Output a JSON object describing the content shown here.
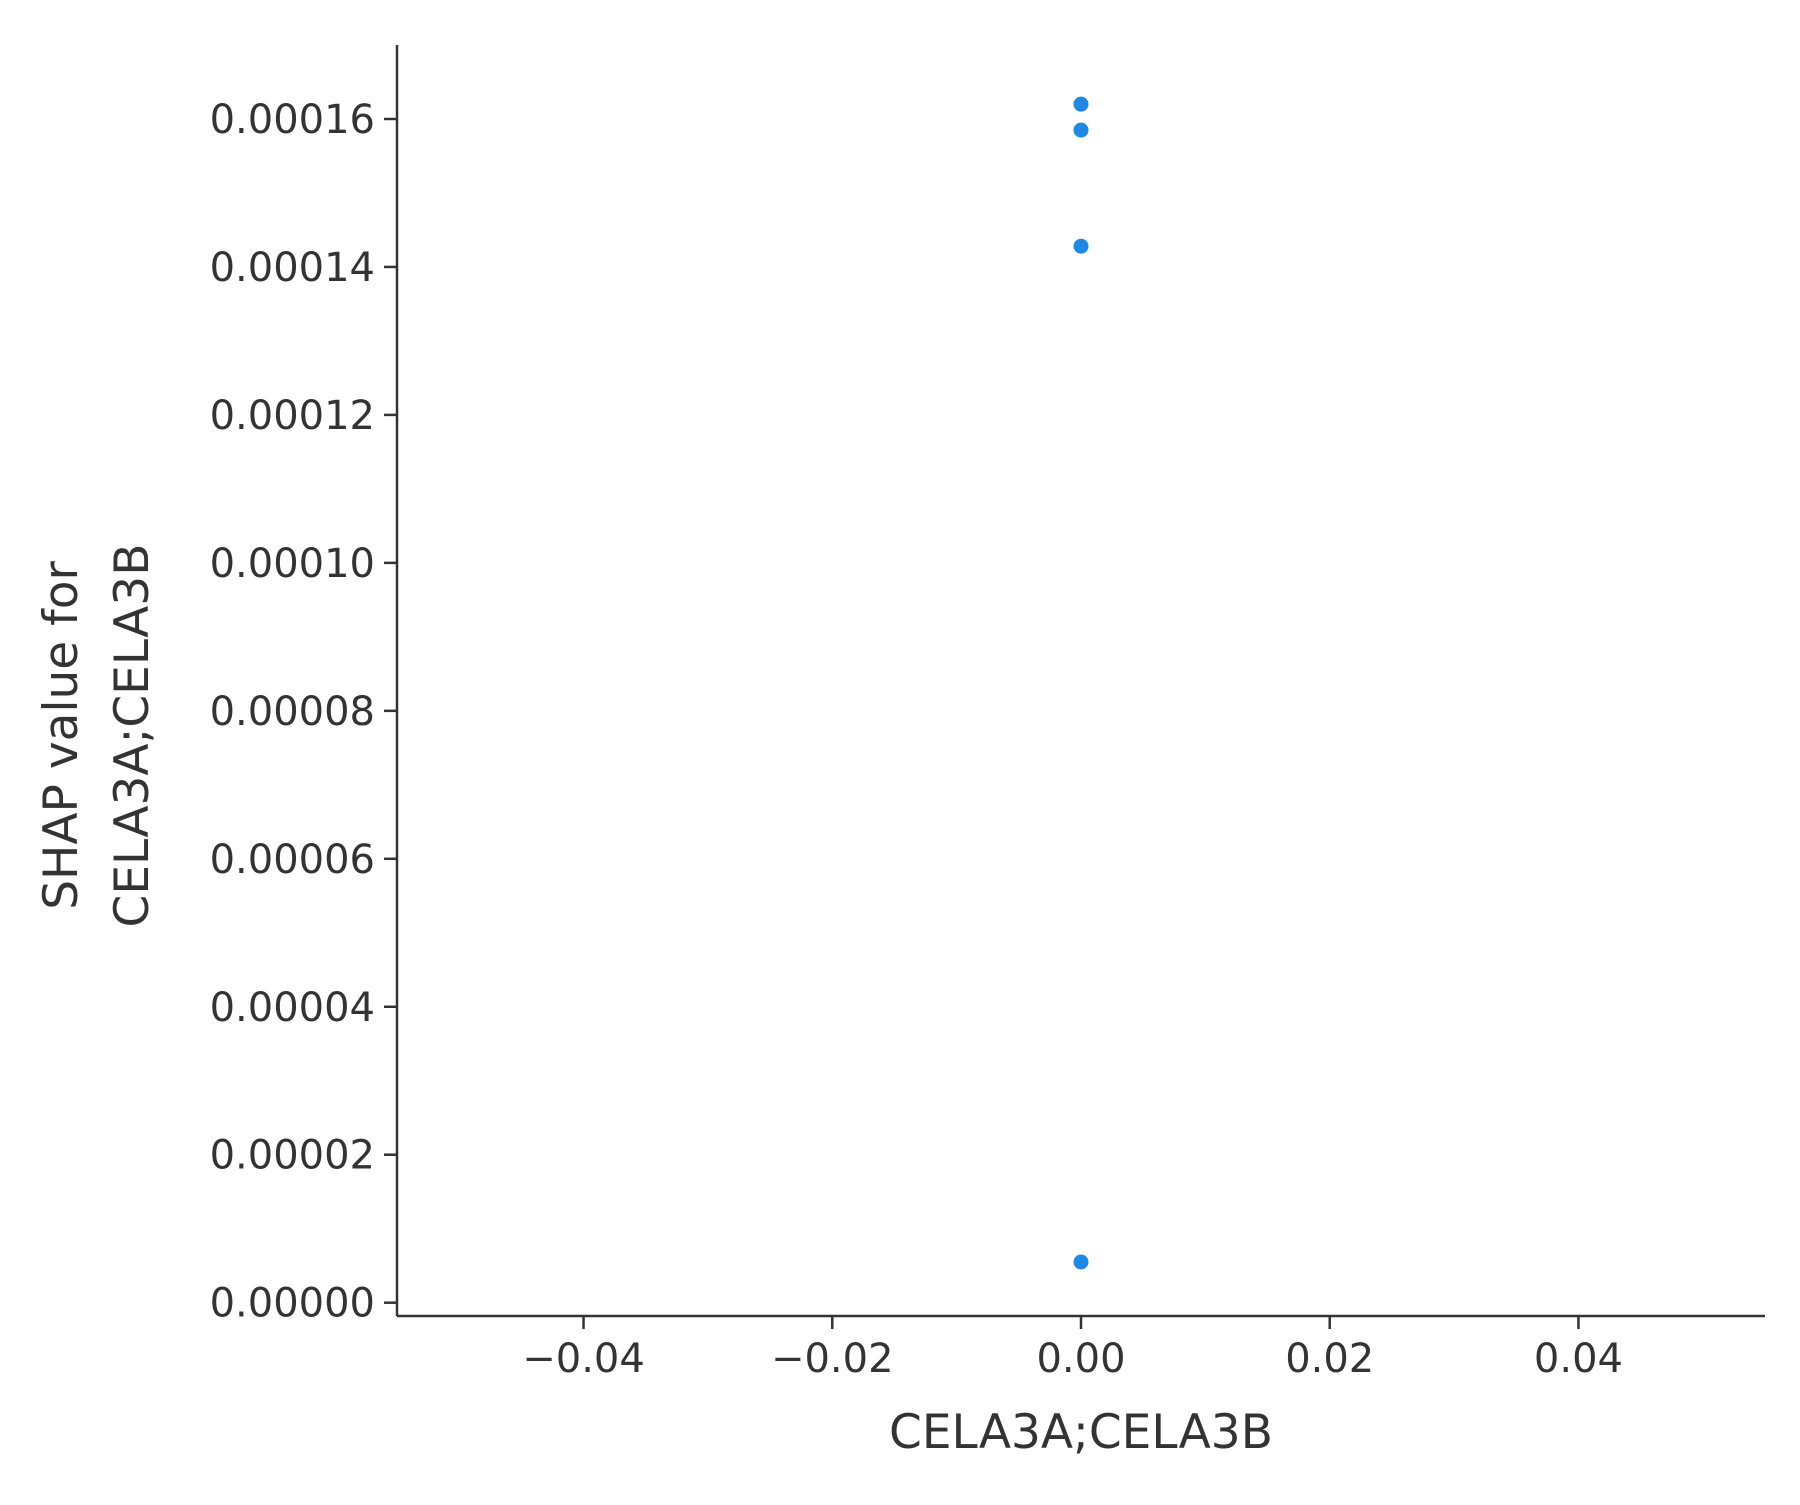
{
  "chart_data": {
    "type": "scatter",
    "title": "",
    "xlabel": "CELA3A;CELA3B",
    "ylabel_lines": [
      "SHAP value for",
      "CELA3A;CELA3B"
    ],
    "xlim": [
      -0.055,
      0.055
    ],
    "ylim": [
      -1.8e-06,
      0.00017
    ],
    "x_ticks": [
      -0.04,
      -0.02,
      0.0,
      0.02,
      0.04
    ],
    "x_tick_labels": [
      "−0.04",
      "−0.02",
      "0.00",
      "0.02",
      "0.04"
    ],
    "y_ticks": [
      0.0,
      2e-05,
      4e-05,
      6e-05,
      8e-05,
      0.0001,
      0.00012,
      0.00014,
      0.00016
    ],
    "y_tick_labels": [
      "0.00000",
      "0.00002",
      "0.00004",
      "0.00006",
      "0.00008",
      "0.00010",
      "0.00012",
      "0.00014",
      "0.00016"
    ],
    "grid": false,
    "point_color": "#1E88E5",
    "points": [
      {
        "x": 0.0,
        "y": 0.000162
      },
      {
        "x": 0.0,
        "y": 0.0001585
      },
      {
        "x": 0.0,
        "y": 0.0001428
      },
      {
        "x": 0.0,
        "y": 5.5e-06
      }
    ]
  }
}
